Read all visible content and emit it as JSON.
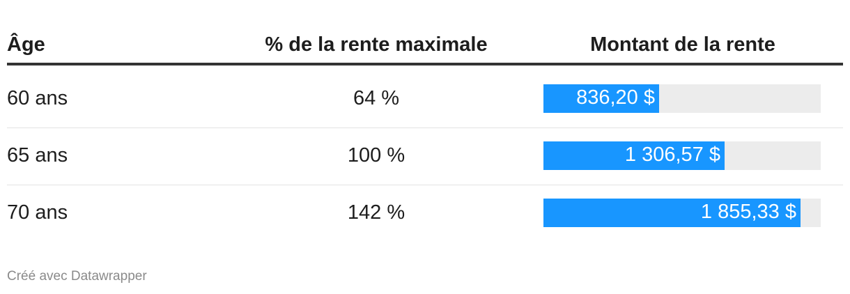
{
  "table": {
    "headers": {
      "age": "Âge",
      "percent": "% de la rente maximale",
      "amount": "Montant de la rente"
    }
  },
  "chart_data": {
    "type": "table",
    "columns": [
      "Âge",
      "% de la rente maximale",
      "Montant de la rente"
    ],
    "rows": [
      {
        "age": "60 ans",
        "percent": "64 %",
        "amount": 836.2,
        "amount_label": "836,20 $"
      },
      {
        "age": "65 ans",
        "percent": "100 %",
        "amount": 1306.57,
        "amount_label": "1 306,57 $"
      },
      {
        "age": "70 ans",
        "percent": "142 %",
        "amount": 1855.33,
        "amount_label": "1 855,33 $"
      }
    ],
    "bar_max": 2000,
    "bar_color": "#1896ff",
    "track_color": "#ececec"
  },
  "footer": {
    "credit": "Créé avec Datawrapper"
  }
}
